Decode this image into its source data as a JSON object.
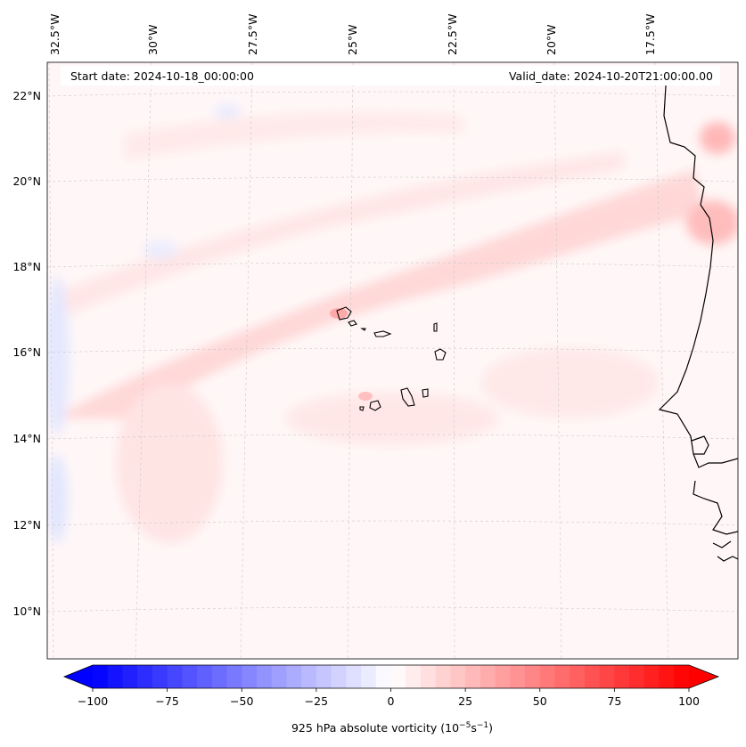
{
  "map": {
    "start_date_label": "Start date: 2024-10-18_00:00:00",
    "valid_date_label": "Valid_date: 2024-10-20T21:00:00.00",
    "longitude_labels": [
      "32.5°W",
      "30°W",
      "27.5°W",
      "25°W",
      "22.5°W",
      "20°W",
      "17.5°W"
    ],
    "latitude_labels": [
      "22°N",
      "20°N",
      "18°N",
      "16°N",
      "14°N",
      "12°N",
      "10°N"
    ],
    "field": "925 hPa absolute vorticity",
    "gridlines": true,
    "features": [
      "Cape Verde islands",
      "West African coastline"
    ]
  },
  "colorbar": {
    "label": "925 hPa absolute vorticity (10",
    "label_exp1": "−5",
    "label_mid": "s",
    "label_exp2": "−1",
    "label_end": ")",
    "ticks": [
      "−100",
      "−75",
      "−50",
      "−25",
      "0",
      "25",
      "50",
      "75",
      "100"
    ],
    "min": -100,
    "max": 100,
    "colormap": "bwr",
    "extend": "both",
    "low_color": "#0000ff",
    "mid_color": "#ffffff",
    "high_color": "#ff0000"
  }
}
